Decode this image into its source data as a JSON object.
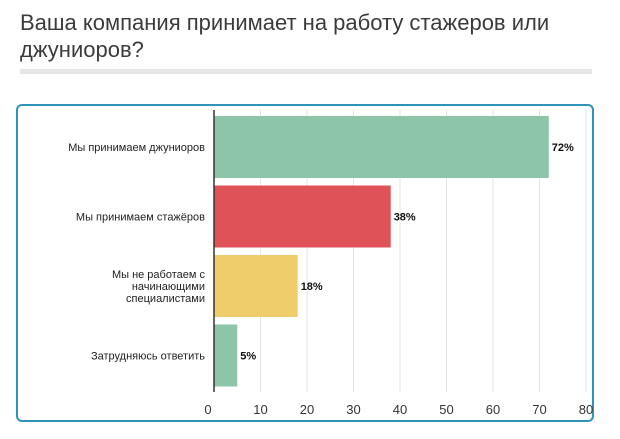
{
  "title": "Ваша компания принимает на работу стажеров или джуниоров?",
  "chart_data": {
    "type": "bar",
    "orientation": "horizontal",
    "categories": [
      [
        "Мы принимаем джуниоров"
      ],
      [
        "Мы принимаем стажёров"
      ],
      [
        "Мы не работаем с",
        "начинающими",
        "специалистами"
      ],
      [
        "Затрудняюсь ответить"
      ]
    ],
    "values": [
      72,
      38,
      18,
      5
    ],
    "value_labels": [
      "72%",
      "38%",
      "18%",
      "5%"
    ],
    "colors": [
      "#8cc5a8",
      "#df5257",
      "#f0cd6b",
      "#8cc5a8"
    ],
    "xlim": [
      0,
      80
    ],
    "xticks": [
      0,
      10,
      20,
      30,
      40,
      50,
      60,
      70,
      80
    ],
    "xlabel": "",
    "ylabel": "",
    "grid": true,
    "legend": false
  }
}
